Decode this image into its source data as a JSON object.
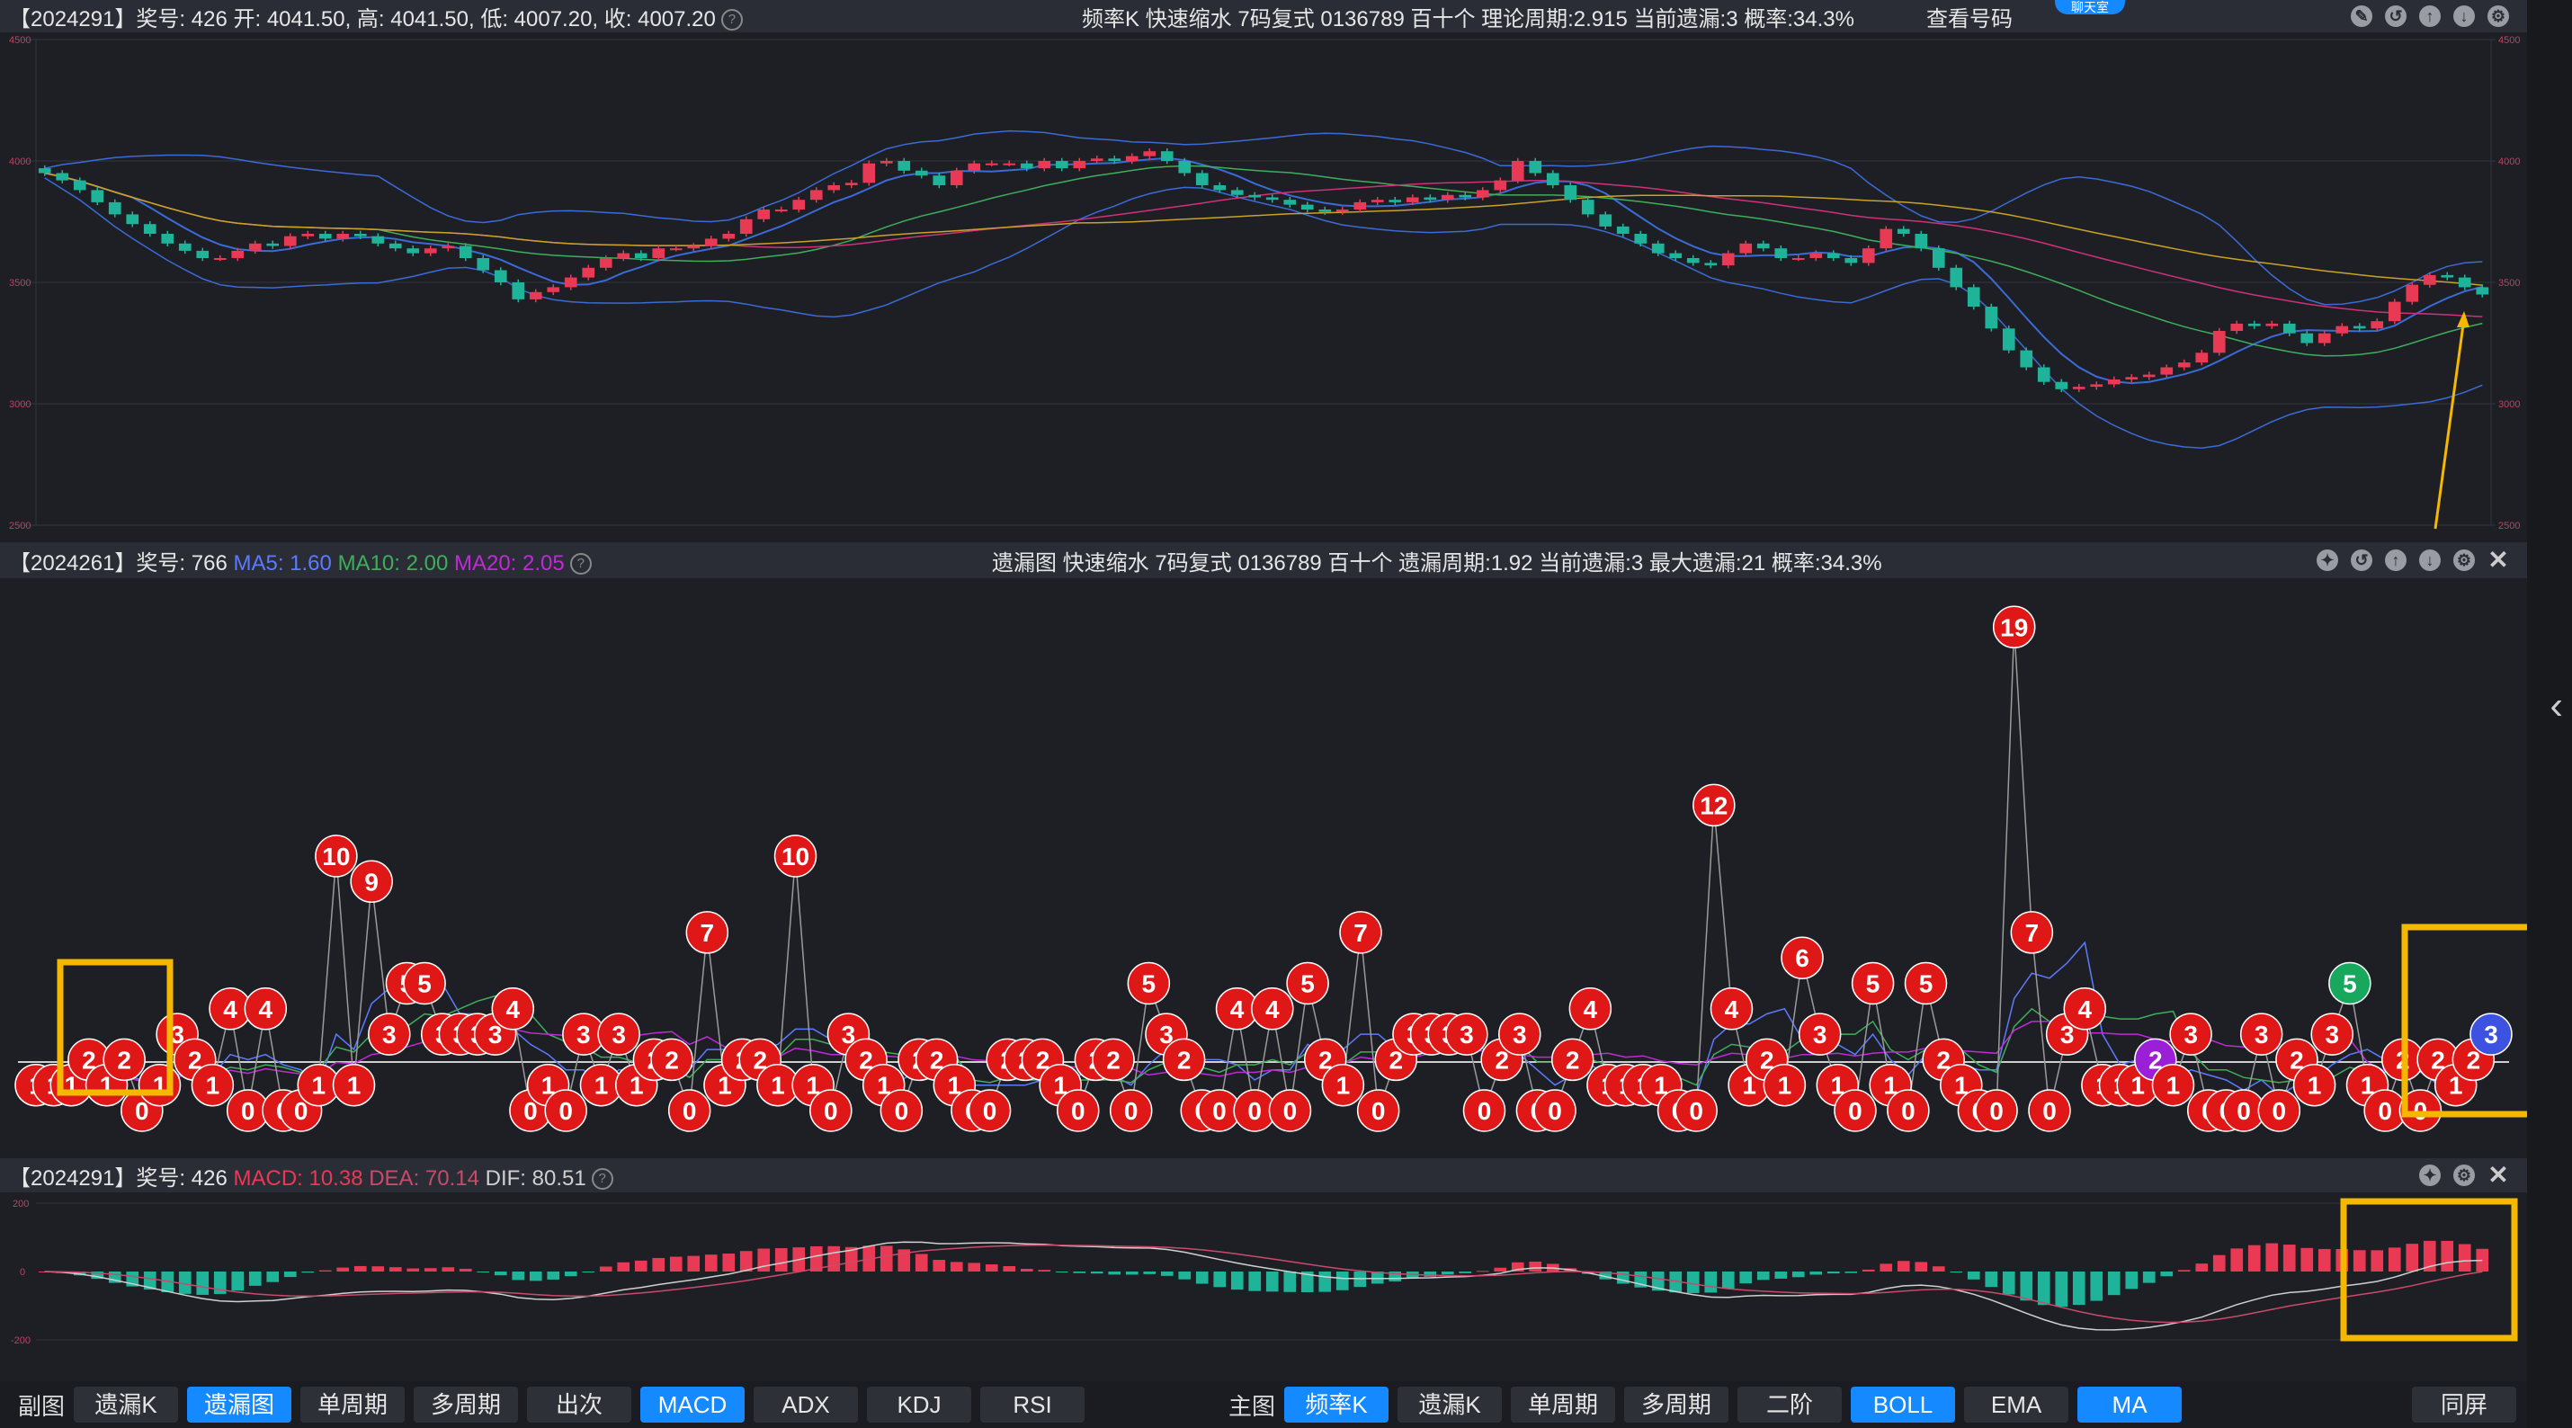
{
  "main_panel": {
    "header_left": "【2024291】奖号: 426  开: 4041.50, 高: 4041.50, 低: 4007.20, 收: 4007.20",
    "header_center": "频率K   快速缩水   7码复式 0136789   百十个   理论周期:2.915   当前遗漏:3   概率:34.3%",
    "view_numbers": "查看号码",
    "subscribe_label": "聊天室",
    "y_ticks": [
      "4500",
      "4000",
      "3500",
      "3000",
      "2500"
    ]
  },
  "miss_panel": {
    "header_left_prefix": "【2024261】奖号: 766",
    "ma5": "MA5: 1.60",
    "ma10": "MA10: 2.00",
    "ma20": "MA20: 2.05",
    "header_center": "遗漏图   快速缩水   7码复式 0136789   百十个   遗漏周期:1.92   当前遗漏:3   最大遗漏:21   概率:34.3%"
  },
  "macd_panel": {
    "header_left_prefix": "【2024291】奖号: 426",
    "macd": "MACD: 10.38",
    "dea": "DEA: 70.14",
    "dif": "DIF: 80.51",
    "y_ticks": [
      "200",
      "0",
      "-200"
    ]
  },
  "toolbar": {
    "sub_label": "副图",
    "sub_buttons": [
      {
        "label": "遗漏K",
        "active": false
      },
      {
        "label": "遗漏图",
        "active": true
      },
      {
        "label": "单周期",
        "active": false
      },
      {
        "label": "多周期",
        "active": false
      },
      {
        "label": "出次",
        "active": false
      },
      {
        "label": "MACD",
        "active": true
      },
      {
        "label": "ADX",
        "active": false
      },
      {
        "label": "KDJ",
        "active": false
      },
      {
        "label": "RSI",
        "active": false
      }
    ],
    "main_label": "主图",
    "main_buttons": [
      {
        "label": "频率K",
        "active": true
      },
      {
        "label": "遗漏K",
        "active": false
      },
      {
        "label": "单周期",
        "active": false
      },
      {
        "label": "多周期",
        "active": false
      },
      {
        "label": "二阶",
        "active": false
      },
      {
        "label": "BOLL",
        "active": true
      },
      {
        "label": "EMA",
        "active": false
      },
      {
        "label": "MA",
        "active": true
      }
    ],
    "fullscreen_label": "同屏"
  },
  "colors": {
    "bg": "#1e1f25",
    "up": "#e83a55",
    "down": "#1fb39a",
    "ma_yellow": "#c9a227",
    "ma_pink": "#d0307a",
    "ma_green": "#3fae5a",
    "boll": "#3a6bd6",
    "miss_red": "#e01717",
    "miss_purple": "#9b1fd6",
    "miss_green": "#17a85e",
    "miss_blue": "#3d52e0",
    "highlight": "#f5b800"
  },
  "chart_data": [
    {
      "type": "candlestick",
      "title": "频率K",
      "ylim": [
        2500,
        4500
      ],
      "close": [
        3950,
        3920,
        3880,
        3830,
        3780,
        3740,
        3700,
        3660,
        3630,
        3600,
        3600,
        3630,
        3660,
        3650,
        3690,
        3700,
        3680,
        3700,
        3690,
        3660,
        3640,
        3620,
        3640,
        3650,
        3600,
        3550,
        3500,
        3430,
        3460,
        3480,
        3520,
        3560,
        3600,
        3620,
        3600,
        3640,
        3640,
        3650,
        3680,
        3700,
        3760,
        3800,
        3800,
        3840,
        3880,
        3900,
        3910,
        3990,
        4000,
        3960,
        3940,
        3900,
        3960,
        3990,
        3990,
        3990,
        3970,
        4000,
        3970,
        4000,
        4010,
        4000,
        4020,
        4040,
        4000,
        3950,
        3900,
        3880,
        3860,
        3850,
        3840,
        3820,
        3800,
        3790,
        3800,
        3830,
        3840,
        3830,
        3850,
        3840,
        3860,
        3850,
        3880,
        3920,
        4000,
        3950,
        3900,
        3840,
        3780,
        3730,
        3700,
        3660,
        3620,
        3600,
        3580,
        3570,
        3620,
        3660,
        3640,
        3600,
        3600,
        3620,
        3600,
        3580,
        3640,
        3720,
        3700,
        3640,
        3560,
        3480,
        3400,
        3310,
        3220,
        3150,
        3090,
        3060,
        3070,
        3080,
        3100,
        3110,
        3120,
        3150,
        3170,
        3210,
        3300,
        3330,
        3320,
        3330,
        3290,
        3250,
        3290,
        3320,
        3310,
        3340,
        3420,
        3490,
        3530,
        3520,
        3480,
        3450
      ]
    },
    {
      "type": "scatter",
      "title": "遗漏图",
      "y": [
        1,
        1,
        1,
        2,
        1,
        2,
        0,
        1,
        3,
        2,
        1,
        4,
        0,
        4,
        0,
        0,
        1,
        10,
        1,
        9,
        3,
        5,
        5,
        3,
        3,
        3,
        3,
        4,
        0,
        1,
        0,
        3,
        1,
        3,
        1,
        2,
        2,
        0,
        7,
        1,
        2,
        2,
        1,
        10,
        1,
        0,
        3,
        2,
        1,
        0,
        2,
        2,
        1,
        0,
        0,
        2,
        2,
        2,
        1,
        0,
        2,
        2,
        0,
        5,
        3,
        2,
        0,
        0,
        4,
        0,
        4,
        0,
        5,
        2,
        1,
        7,
        0,
        2,
        3,
        3,
        3,
        3,
        0,
        2,
        3,
        0,
        0,
        2,
        4,
        1,
        1,
        1,
        1,
        0,
        0,
        12,
        4,
        1,
        2,
        1,
        6,
        3,
        1,
        0,
        5,
        1,
        0,
        5,
        2,
        1,
        0,
        0,
        19,
        7,
        0,
        3,
        4,
        1,
        1,
        1,
        2,
        1,
        3,
        0,
        0,
        0,
        3,
        0,
        2,
        1,
        3,
        5,
        1,
        0,
        2,
        0,
        2,
        1,
        2,
        3
      ],
      "colors_by_value": {
        "default": "miss_red",
        "latest_3": "miss_blue",
        "purple_3": "miss_purple",
        "green_5": "miss_green"
      }
    },
    {
      "type": "bar",
      "title": "MACD",
      "ylim": [
        -200,
        200
      ]
    }
  ]
}
